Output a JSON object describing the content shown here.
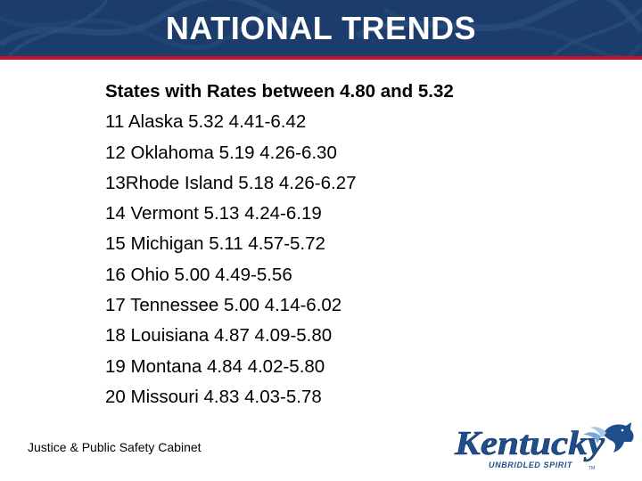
{
  "header": {
    "title": "NATIONAL TRENDS",
    "background_color": "#1c3d6b",
    "accent_color": "#c8102e"
  },
  "content": {
    "heading": "States with Rates between 4.80 and 5.32",
    "rows": [
      "11 Alaska 5.32 4.41-6.42",
      "12 Oklahoma 5.19 4.26-6.30",
      "13Rhode Island 5.18 4.26-6.27",
      "14 Vermont 5.13 4.24-6.19",
      "15 Michigan 5.11 4.57-5.72",
      "16 Ohio 5.00 4.49-5.56",
      "17 Tennessee 5.00 4.14-6.02",
      "18 Louisiana 4.87 4.09-5.80",
      "19 Montana 4.84 4.02-5.80",
      "20 Missouri 4.83 4.03-5.78"
    ]
  },
  "footer": {
    "organization": "Justice & Public Safety Cabinet"
  },
  "logo": {
    "wordmark": "Kentucky",
    "tagline": "UNBRIDLED SPIRIT",
    "trademark": "TM",
    "icon": "horse-head-icon",
    "wordmark_color": "#1f4e8c"
  }
}
